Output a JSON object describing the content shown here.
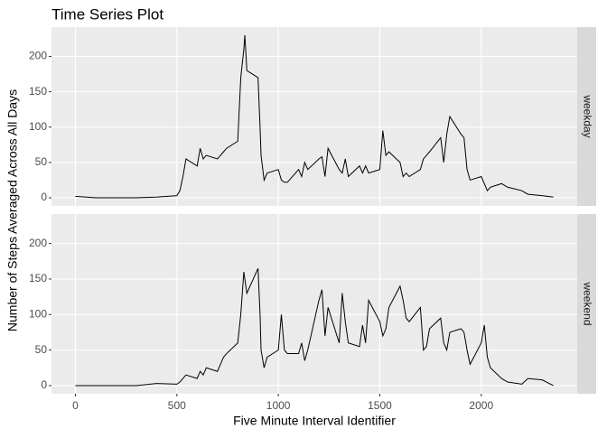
{
  "chart_data": {
    "type": "line",
    "title": "Time Series Plot",
    "x_label": "Five Minute Interval Identifier",
    "y_label": "Number of Steps Averaged Across All Days",
    "x": [
      0,
      100,
      200,
      300,
      400,
      500,
      515,
      530,
      545,
      600,
      615,
      630,
      645,
      700,
      715,
      730,
      745,
      800,
      815,
      830,
      835,
      845,
      900,
      910,
      915,
      930,
      945,
      1000,
      1015,
      1030,
      1045,
      1100,
      1115,
      1130,
      1145,
      1200,
      1215,
      1230,
      1245,
      1300,
      1315,
      1330,
      1345,
      1400,
      1415,
      1430,
      1445,
      1500,
      1515,
      1530,
      1545,
      1600,
      1615,
      1630,
      1645,
      1700,
      1715,
      1730,
      1745,
      1800,
      1815,
      1830,
      1845,
      1900,
      1915,
      1930,
      1945,
      2000,
      2015,
      2030,
      2045,
      2100,
      2130,
      2200,
      2230,
      2300,
      2355
    ],
    "series": [
      {
        "name": "weekday",
        "color": "#000000",
        "values": [
          2,
          0,
          0,
          0,
          1,
          3,
          10,
          30,
          55,
          45,
          70,
          55,
          60,
          55,
          60,
          65,
          70,
          80,
          170,
          210,
          230,
          180,
          170,
          100,
          60,
          25,
          35,
          40,
          25,
          22,
          22,
          40,
          30,
          50,
          40,
          55,
          58,
          30,
          70,
          40,
          35,
          55,
          30,
          45,
          35,
          45,
          35,
          40,
          95,
          60,
          65,
          50,
          30,
          35,
          30,
          40,
          55,
          60,
          65,
          85,
          50,
          90,
          115,
          90,
          85,
          40,
          25,
          30,
          20,
          10,
          15,
          20,
          15,
          10,
          5,
          3,
          1
        ]
      },
      {
        "name": "weekend",
        "color": "#000000",
        "values": [
          0,
          0,
          0,
          0,
          3,
          2,
          5,
          10,
          15,
          10,
          20,
          15,
          25,
          20,
          30,
          40,
          45,
          60,
          100,
          160,
          150,
          130,
          165,
          100,
          50,
          25,
          40,
          50,
          100,
          50,
          45,
          45,
          60,
          35,
          50,
          120,
          135,
          70,
          110,
          60,
          130,
          90,
          60,
          55,
          85,
          60,
          120,
          90,
          70,
          80,
          110,
          140,
          120,
          95,
          90,
          110,
          50,
          55,
          80,
          95,
          60,
          50,
          75,
          80,
          75,
          50,
          30,
          60,
          85,
          40,
          25,
          10,
          5,
          2,
          10,
          8,
          0
        ]
      }
    ],
    "xlim": [
      -117.75,
      2472.75
    ],
    "ylim": [
      -11.5,
      241.5
    ],
    "xticks": [
      0,
      500,
      1000,
      1500,
      2000
    ],
    "yticks": [
      0,
      50,
      100,
      150,
      200
    ],
    "grid": true
  }
}
